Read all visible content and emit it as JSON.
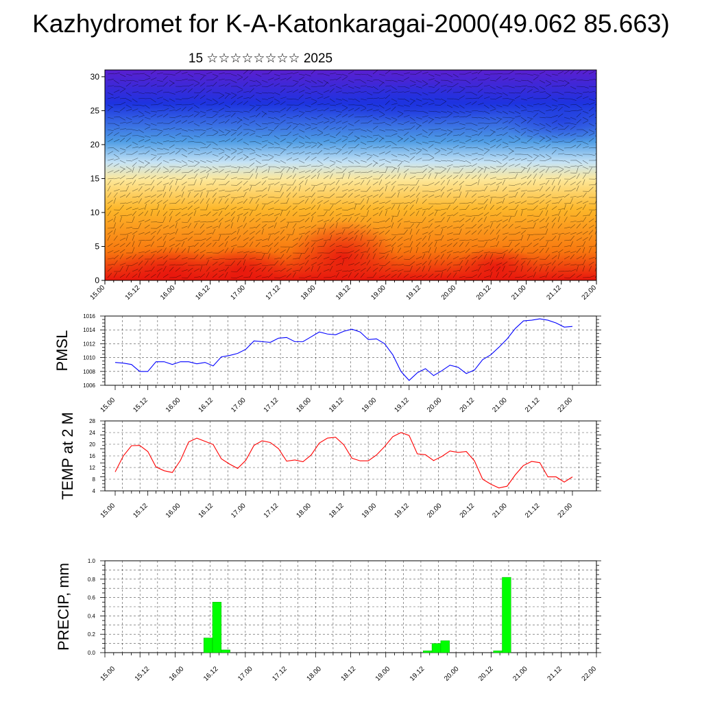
{
  "page": {
    "title": "Kazhydromet for K-A-Katonkaragai-2000(49.062 85.663)",
    "subtitle": "15 ☆☆☆☆☆☆☆☆ 2025"
  },
  "time_axis": {
    "labels": [
      "15.00",
      "15.12",
      "16.00",
      "16.12",
      "17.00",
      "17.12",
      "18.00",
      "18.12",
      "19.00",
      "19.12",
      "20.00",
      "20.12",
      "21.00",
      "21.12",
      "22.00"
    ]
  },
  "chart_data": [
    {
      "id": "cross-section",
      "type": "heatmap",
      "title": "",
      "xlabel": "",
      "ylabel": "",
      "ylim": [
        0,
        31
      ],
      "yticks": [
        0,
        5,
        10,
        15,
        20,
        25,
        30
      ],
      "x": [
        "15.00",
        "15.12",
        "16.00",
        "16.12",
        "17.00",
        "17.12",
        "18.00",
        "18.12",
        "19.00",
        "19.12",
        "20.00",
        "20.12",
        "21.00",
        "21.12",
        "22.00"
      ],
      "colormap": [
        "#e8150d",
        "#f8780f",
        "#fdb72a",
        "#fde89a",
        "#c6e3f5",
        "#4f9de5",
        "#1d33e0",
        "#5a1fd0"
      ],
      "overlay": "wind barbs"
    },
    {
      "id": "pmsl",
      "type": "line",
      "ylabel": "PMSL",
      "ylim": [
        1006,
        1016
      ],
      "yticks": [
        1006,
        1008,
        1010,
        1012,
        1014,
        1016
      ],
      "color": "#0000ff",
      "x_start_index": 0.3,
      "x_step": 0.25,
      "values": [
        1009.3,
        1009.2,
        1009.0,
        1008.0,
        1008.0,
        1009.4,
        1009.4,
        1009.0,
        1009.4,
        1009.4,
        1009.1,
        1009.3,
        1008.8,
        1010.1,
        1010.3,
        1010.6,
        1011.2,
        1012.4,
        1012.3,
        1012.2,
        1012.8,
        1012.9,
        1012.3,
        1012.3,
        1013.0,
        1013.7,
        1013.4,
        1013.3,
        1013.8,
        1014.1,
        1013.7,
        1012.6,
        1012.7,
        1012.0,
        1010.4,
        1008.0,
        1006.7,
        1007.8,
        1008.4,
        1007.4,
        1008.1,
        1008.9,
        1008.6,
        1007.7,
        1008.2,
        1009.7,
        1010.4,
        1011.5,
        1012.7,
        1014.2,
        1015.3,
        1015.4,
        1015.6,
        1015.4,
        1015.0,
        1014.4,
        1014.5
      ]
    },
    {
      "id": "temp2m",
      "type": "line",
      "ylabel": "TEMP at 2 M",
      "ylim": [
        4,
        28
      ],
      "yticks": [
        4,
        8,
        12,
        16,
        20,
        24,
        28
      ],
      "color": "#ff0000",
      "x_start_index": 0.3,
      "x_step": 0.25,
      "values": [
        10.5,
        16.0,
        19.5,
        19.6,
        17.5,
        12.2,
        10.9,
        10.3,
        14.5,
        20.8,
        22.1,
        21.0,
        19.9,
        15.0,
        13.2,
        11.7,
        14.5,
        19.6,
        21.2,
        20.6,
        18.5,
        14.2,
        14.6,
        14.0,
        16.3,
        20.4,
        22.1,
        22.4,
        19.8,
        15.2,
        14.3,
        14.3,
        16.3,
        19.2,
        22.6,
        24.0,
        23.0,
        16.7,
        16.4,
        14.4,
        15.8,
        17.7,
        17.2,
        17.5,
        14.3,
        8.0,
        6.3,
        5.0,
        5.6,
        9.5,
        12.7,
        14.1,
        13.7,
        8.8,
        8.8,
        7.0,
        8.8
      ]
    },
    {
      "id": "precip",
      "type": "bar",
      "ylabel": "PRECIP, mm",
      "ylim": [
        0,
        1.0
      ],
      "yticks": [
        0.0,
        0.2,
        0.4,
        0.6,
        0.8,
        1.0
      ],
      "yticklabels": [
        "0.0",
        "0.2",
        "0.4",
        "0.6",
        "0.8",
        "1.0"
      ],
      "color": "#00ff00",
      "bars": [
        {
          "x": 2.55,
          "value": 0.16
        },
        {
          "x": 2.8,
          "value": 0.55
        },
        {
          "x": 3.05,
          "value": 0.03
        },
        {
          "x": 8.8,
          "value": 0.02
        },
        {
          "x": 9.05,
          "value": 0.1
        },
        {
          "x": 9.3,
          "value": 0.13
        },
        {
          "x": 10.8,
          "value": 0.02
        },
        {
          "x": 11.05,
          "value": 0.82
        }
      ]
    }
  ]
}
